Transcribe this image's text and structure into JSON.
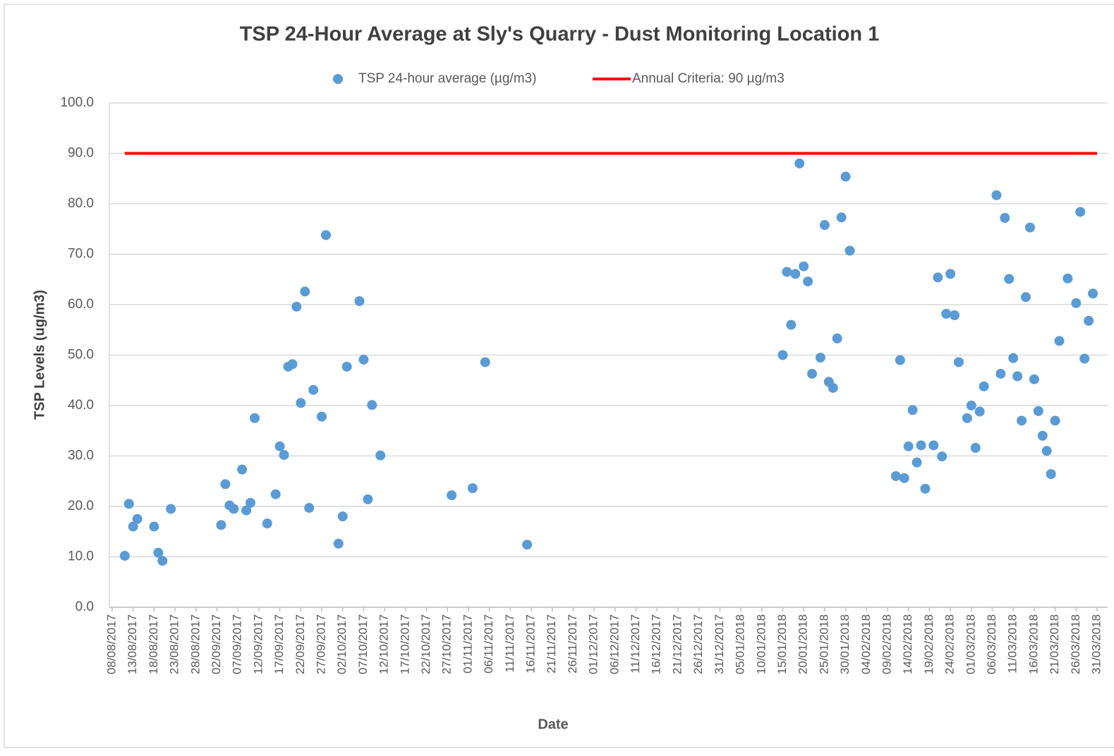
{
  "chart_data": {
    "type": "scatter",
    "title": "TSP 24-Hour Average at Sly's Quarry - Dust Monitoring Location 1",
    "x_label": "Date",
    "y_label": "TSP Levels (ug/m3)",
    "grid": true,
    "legend": "top",
    "xlim": [
      "2017-08-08",
      "2018-03-31"
    ],
    "ylim": [
      0,
      100
    ],
    "yticks": [
      {
        "value": 0,
        "label": "0.0"
      },
      {
        "value": 10,
        "label": "10.0"
      },
      {
        "value": 20,
        "label": "20.0"
      },
      {
        "value": 30,
        "label": "30.0"
      },
      {
        "value": 40,
        "label": "40.0"
      },
      {
        "value": 50,
        "label": "50.0"
      },
      {
        "value": 60,
        "label": "60.0"
      },
      {
        "value": 70,
        "label": "70.0"
      },
      {
        "value": 80,
        "label": "80.0"
      },
      {
        "value": 90,
        "label": "90.0"
      },
      {
        "value": 100,
        "label": "100.0"
      }
    ],
    "xticks": [
      {
        "value": "2017-08-08",
        "label": "08/08/2017"
      },
      {
        "value": "2017-08-13",
        "label": "13/08/2017"
      },
      {
        "value": "2017-08-18",
        "label": "18/08/2017"
      },
      {
        "value": "2017-08-23",
        "label": "23/08/2017"
      },
      {
        "value": "2017-08-28",
        "label": "28/08/2017"
      },
      {
        "value": "2017-09-02",
        "label": "02/09/2017"
      },
      {
        "value": "2017-09-07",
        "label": "07/09/2017"
      },
      {
        "value": "2017-09-12",
        "label": "12/09/2017"
      },
      {
        "value": "2017-09-17",
        "label": "17/09/2017"
      },
      {
        "value": "2017-09-22",
        "label": "22/09/2017"
      },
      {
        "value": "2017-09-27",
        "label": "27/09/2017"
      },
      {
        "value": "2017-10-02",
        "label": "02/10/2017"
      },
      {
        "value": "2017-10-07",
        "label": "07/10/2017"
      },
      {
        "value": "2017-10-12",
        "label": "12/10/2017"
      },
      {
        "value": "2017-10-17",
        "label": "17/10/2017"
      },
      {
        "value": "2017-10-22",
        "label": "22/10/2017"
      },
      {
        "value": "2017-10-27",
        "label": "27/10/2017"
      },
      {
        "value": "2017-11-01",
        "label": "01/11/2017"
      },
      {
        "value": "2017-11-06",
        "label": "06/11/2017"
      },
      {
        "value": "2017-11-11",
        "label": "11/11/2017"
      },
      {
        "value": "2017-11-16",
        "label": "16/11/2017"
      },
      {
        "value": "2017-11-21",
        "label": "21/11/2017"
      },
      {
        "value": "2017-11-26",
        "label": "26/11/2017"
      },
      {
        "value": "2017-12-01",
        "label": "01/12/2017"
      },
      {
        "value": "2017-12-06",
        "label": "06/12/2017"
      },
      {
        "value": "2017-12-11",
        "label": "11/12/2017"
      },
      {
        "value": "2017-12-16",
        "label": "16/12/2017"
      },
      {
        "value": "2017-12-21",
        "label": "21/12/2017"
      },
      {
        "value": "2017-12-26",
        "label": "26/12/2017"
      },
      {
        "value": "2017-12-31",
        "label": "31/12/2017"
      },
      {
        "value": "2018-01-05",
        "label": "05/01/2018"
      },
      {
        "value": "2018-01-10",
        "label": "10/01/2018"
      },
      {
        "value": "2018-01-15",
        "label": "15/01/2018"
      },
      {
        "value": "2018-01-20",
        "label": "20/01/2018"
      },
      {
        "value": "2018-01-25",
        "label": "25/01/2018"
      },
      {
        "value": "2018-01-30",
        "label": "30/01/2018"
      },
      {
        "value": "2018-02-04",
        "label": "04/02/2018"
      },
      {
        "value": "2018-02-09",
        "label": "09/02/2018"
      },
      {
        "value": "2018-02-14",
        "label": "14/02/2018"
      },
      {
        "value": "2018-02-19",
        "label": "19/02/2018"
      },
      {
        "value": "2018-02-24",
        "label": "24/02/2018"
      },
      {
        "value": "2018-03-01",
        "label": "01/03/2018"
      },
      {
        "value": "2018-03-06",
        "label": "06/03/2018"
      },
      {
        "value": "2018-03-11",
        "label": "11/03/2018"
      },
      {
        "value": "2018-03-16",
        "label": "16/03/2018"
      },
      {
        "value": "2018-03-21",
        "label": "21/03/2018"
      },
      {
        "value": "2018-03-26",
        "label": "26/03/2018"
      },
      {
        "value": "2018-03-31",
        "label": "31/03/2018"
      }
    ],
    "series": [
      {
        "name": "TSP 24-hour average (µg/m3)",
        "color": "#5b9bd5",
        "type": "scatter",
        "x": [
          "2017-08-11",
          "2017-08-12",
          "2017-08-13",
          "2017-08-14",
          "2017-08-18",
          "2017-08-19",
          "2017-08-20",
          "2017-08-22",
          "2017-09-03",
          "2017-09-04",
          "2017-09-05",
          "2017-09-06",
          "2017-09-08",
          "2017-09-09",
          "2017-09-10",
          "2017-09-11",
          "2017-09-14",
          "2017-09-16",
          "2017-09-17",
          "2017-09-18",
          "2017-09-19",
          "2017-09-20",
          "2017-09-21",
          "2017-09-22",
          "2017-09-23",
          "2017-09-24",
          "2017-09-25",
          "2017-09-27",
          "2017-09-28",
          "2017-10-01",
          "2017-10-02",
          "2017-10-03",
          "2017-10-06",
          "2017-10-07",
          "2017-10-08",
          "2017-10-09",
          "2017-10-11",
          "2017-10-28",
          "2017-11-02",
          "2017-11-05",
          "2017-11-15",
          "2018-01-15",
          "2018-01-16",
          "2018-01-17",
          "2018-01-18",
          "2018-01-19",
          "2018-01-20",
          "2018-01-21",
          "2018-01-22",
          "2018-01-24",
          "2018-01-25",
          "2018-01-26",
          "2018-01-27",
          "2018-01-28",
          "2018-01-29",
          "2018-01-30",
          "2018-01-31",
          "2018-02-11",
          "2018-02-12",
          "2018-02-13",
          "2018-02-14",
          "2018-02-15",
          "2018-02-16",
          "2018-02-17",
          "2018-02-18",
          "2018-02-20",
          "2018-02-21",
          "2018-02-22",
          "2018-02-23",
          "2018-02-24",
          "2018-02-25",
          "2018-02-26",
          "2018-02-28",
          "2018-03-01",
          "2018-03-02",
          "2018-03-03",
          "2018-03-04",
          "2018-03-07",
          "2018-03-08",
          "2018-03-09",
          "2018-03-10",
          "2018-03-11",
          "2018-03-12",
          "2018-03-13",
          "2018-03-14",
          "2018-03-15",
          "2018-03-16",
          "2018-03-17",
          "2018-03-18",
          "2018-03-19",
          "2018-03-20",
          "2018-03-21",
          "2018-03-22",
          "2018-03-24",
          "2018-03-26",
          "2018-03-27",
          "2018-03-28",
          "2018-03-29",
          "2018-03-30"
        ],
        "values": [
          10.2,
          20.5,
          16.0,
          17.5,
          16.0,
          10.8,
          9.2,
          19.5,
          16.3,
          24.4,
          20.2,
          19.5,
          27.3,
          19.2,
          20.7,
          37.5,
          16.6,
          22.4,
          31.9,
          30.2,
          47.7,
          48.2,
          59.6,
          40.5,
          62.6,
          19.7,
          43.1,
          37.8,
          73.8,
          12.6,
          18.0,
          47.7,
          60.7,
          49.1,
          21.4,
          40.1,
          30.1,
          22.2,
          23.6,
          48.6,
          12.4,
          50.0,
          66.5,
          56.0,
          66.1,
          88.0,
          67.6,
          64.6,
          46.3,
          49.5,
          75.8,
          44.7,
          43.5,
          53.3,
          77.3,
          85.4,
          70.7,
          26.0,
          49.0,
          25.6,
          31.9,
          39.1,
          28.7,
          32.1,
          23.5,
          32.1,
          65.4,
          29.9,
          58.2,
          66.1,
          57.9,
          48.6,
          37.5,
          40.0,
          31.6,
          38.8,
          43.8,
          81.7,
          46.3,
          77.2,
          65.1,
          49.4,
          45.8,
          37.0,
          61.5,
          75.3,
          45.2,
          38.9,
          34.0,
          31.0,
          26.4,
          37.0,
          52.8,
          65.2,
          60.3,
          78.4,
          49.3,
          56.8,
          62.2
        ]
      },
      {
        "name": "Annual Criteria: 90 µg/m3",
        "color": "#ff0000",
        "type": "line",
        "x": [
          "2017-08-11",
          "2018-03-31"
        ],
        "values": [
          90,
          90
        ]
      }
    ]
  }
}
